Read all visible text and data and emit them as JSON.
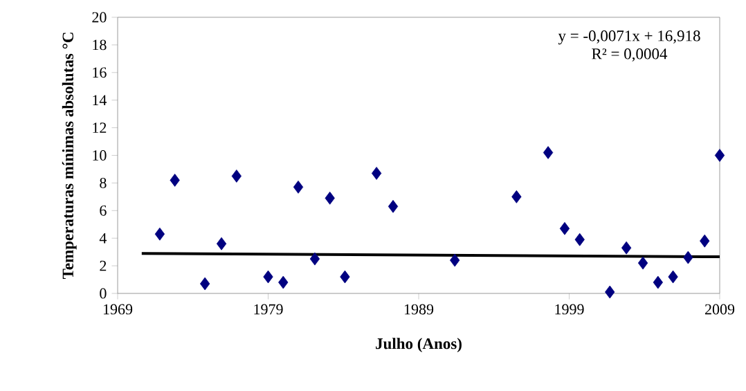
{
  "chart_data": {
    "type": "scatter",
    "xlabel": "Julho (Anos)",
    "ylabel": "Temperaturas mínimas absolutas °C",
    "marker": "diamond",
    "xlim": [
      1969,
      2009
    ],
    "xticks": [
      1969,
      1979,
      1989,
      1999,
      2009
    ],
    "ylim": [
      0,
      20
    ],
    "yticks": [
      0,
      2,
      4,
      6,
      8,
      10,
      12,
      14,
      16,
      18,
      20
    ],
    "grid": false,
    "annotations": [
      "y = -0,0071x + 16,918",
      "R² = 0,0004"
    ],
    "series": [
      {
        "color": "#000080",
        "x": [
          1971.8,
          1972.8,
          1974.8,
          1975.9,
          1976.9,
          1979.0,
          1980.0,
          1981.0,
          1982.1,
          1983.1,
          1984.1,
          1986.2,
          1987.3,
          1991.4,
          1995.5,
          1997.6,
          1998.7,
          1999.7,
          2001.7,
          2002.8,
          2003.9,
          2004.9,
          2005.9,
          2006.9,
          2008.0,
          2009.0
        ],
        "values": [
          4.3,
          8.2,
          0.7,
          3.6,
          8.5,
          1.2,
          0.8,
          7.7,
          2.5,
          6.9,
          1.2,
          8.7,
          6.3,
          2.4,
          7.0,
          10.2,
          4.7,
          3.9,
          0.1,
          3.3,
          2.2,
          0.8,
          1.2,
          2.6,
          3.8,
          10.0
        ]
      },
      {
        "type": "line",
        "color": "#000000",
        "marker": "none",
        "x": [
          1970.6,
          2009
        ],
        "values": [
          2.9,
          2.65
        ]
      }
    ]
  }
}
